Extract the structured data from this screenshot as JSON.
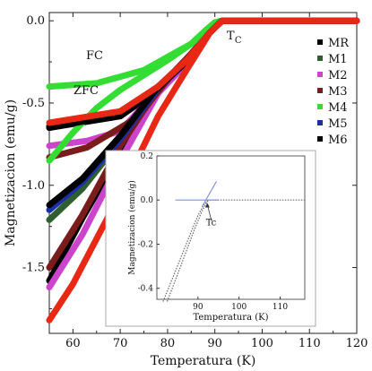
{
  "chart_data": [
    {
      "type": "line",
      "xlabel": "Temperatura (K)",
      "ylabel": "Magnetizacion (emu/g)",
      "xlim": [
        55,
        120
      ],
      "ylim": [
        -1.9,
        0.05
      ],
      "x_ticks": [
        "60",
        "70",
        "80",
        "90",
        "100",
        "110",
        "120"
      ],
      "y_ticks": [
        "0.0",
        "-0.5",
        "-1.0",
        "-1.5"
      ],
      "legend_position": "right",
      "annotations": {
        "fc": "FC",
        "zfc": "ZFC",
        "tc_main": "T",
        "tc_sub": "C"
      },
      "series": [
        {
          "name": "MR",
          "color": "#000000",
          "fc": [
            [
              55,
              -0.65
            ],
            [
              70,
              -0.58
            ],
            [
              78,
              -0.42
            ],
            [
              84,
              -0.25
            ],
            [
              89,
              -0.07
            ],
            [
              91.5,
              0
            ],
            [
              120,
              0
            ]
          ],
          "zfc": [
            [
              55,
              -1.58
            ],
            [
              62,
              -1.2
            ],
            [
              70,
              -0.8
            ],
            [
              78,
              -0.42
            ],
            [
              84,
              -0.25
            ],
            [
              89,
              -0.07
            ],
            [
              91.5,
              0
            ],
            [
              120,
              0
            ]
          ]
        },
        {
          "name": "M1",
          "color": "#2f5f2f",
          "fc": [
            [
              55,
              -0.64
            ],
            [
              70,
              -0.56
            ],
            [
              78,
              -0.4
            ],
            [
              84,
              -0.24
            ],
            [
              89,
              -0.07
            ],
            [
              91.5,
              0
            ],
            [
              120,
              0
            ]
          ],
          "zfc": [
            [
              55,
              -1.21
            ],
            [
              62,
              -1.02
            ],
            [
              70,
              -0.73
            ],
            [
              78,
              -0.41
            ],
            [
              84,
              -0.25
            ],
            [
              89,
              -0.07
            ],
            [
              91.5,
              0
            ],
            [
              120,
              0
            ]
          ]
        },
        {
          "name": "M2",
          "color": "#cc44cc",
          "fc": [
            [
              55,
              -0.76
            ],
            [
              63,
              -0.73
            ],
            [
              70,
              -0.67
            ],
            [
              78,
              -0.42
            ],
            [
              84,
              -0.25
            ],
            [
              89,
              -0.07
            ],
            [
              91.5,
              0
            ],
            [
              120,
              0
            ]
          ],
          "zfc": [
            [
              55,
              -1.62
            ],
            [
              62,
              -1.3
            ],
            [
              70,
              -0.85
            ],
            [
              78,
              -0.44
            ],
            [
              84,
              -0.26
            ],
            [
              89,
              -0.07
            ],
            [
              91.5,
              0
            ],
            [
              120,
              0
            ]
          ]
        },
        {
          "name": "M3",
          "color": "#7a1c1c",
          "fc": [
            [
              55,
              -0.83
            ],
            [
              63,
              -0.77
            ],
            [
              70,
              -0.65
            ],
            [
              74,
              -0.58
            ],
            [
              80,
              -0.35
            ],
            [
              85,
              -0.2
            ],
            [
              89,
              -0.07
            ],
            [
              91.5,
              0
            ],
            [
              120,
              0
            ]
          ],
          "zfc": [
            [
              55,
              -1.5
            ],
            [
              62,
              -1.18
            ],
            [
              70,
              -0.76
            ],
            [
              76,
              -0.5
            ],
            [
              80,
              -0.36
            ],
            [
              85,
              -0.2
            ],
            [
              89,
              -0.07
            ],
            [
              91.5,
              0
            ],
            [
              120,
              0
            ]
          ]
        },
        {
          "name": "M4",
          "color": "#33dd33",
          "fc": [
            [
              55,
              -0.4
            ],
            [
              65,
              -0.38
            ],
            [
              75,
              -0.3
            ],
            [
              80,
              -0.22
            ],
            [
              85,
              -0.14
            ],
            [
              88,
              -0.06
            ],
            [
              90,
              -0.01
            ],
            [
              91.5,
              0
            ],
            [
              120,
              0
            ]
          ],
          "zfc": [
            [
              55,
              -0.85
            ],
            [
              60,
              -0.68
            ],
            [
              65,
              -0.53
            ],
            [
              70,
              -0.42
            ],
            [
              75,
              -0.33
            ],
            [
              80,
              -0.24
            ],
            [
              85,
              -0.14
            ],
            [
              88,
              -0.06
            ],
            [
              90,
              -0.01
            ],
            [
              91.5,
              0
            ],
            [
              120,
              0
            ]
          ]
        },
        {
          "name": "M5",
          "color": "#1c2fa8",
          "fc": [
            [
              55,
              -0.64
            ],
            [
              70,
              -0.56
            ],
            [
              78,
              -0.4
            ],
            [
              84,
              -0.24
            ],
            [
              89,
              -0.07
            ],
            [
              91.5,
              0
            ],
            [
              120,
              0
            ]
          ],
          "zfc": [
            [
              55,
              -1.15
            ],
            [
              62,
              -0.98
            ],
            [
              70,
              -0.72
            ],
            [
              78,
              -0.41
            ],
            [
              84,
              -0.25
            ],
            [
              89,
              -0.07
            ],
            [
              91.5,
              0
            ],
            [
              120,
              0
            ]
          ]
        },
        {
          "name": "M6",
          "color": "#000000",
          "fc": [
            [
              55,
              -0.65
            ],
            [
              70,
              -0.57
            ],
            [
              78,
              -0.41
            ],
            [
              84,
              -0.24
            ],
            [
              89,
              -0.07
            ],
            [
              91.5,
              0
            ],
            [
              120,
              0
            ]
          ],
          "zfc": [
            [
              55,
              -1.12
            ],
            [
              62,
              -0.96
            ],
            [
              70,
              -0.7
            ],
            [
              78,
              -0.4
            ],
            [
              84,
              -0.25
            ],
            [
              89,
              -0.07
            ],
            [
              91.5,
              0
            ],
            [
              120,
              0
            ]
          ]
        },
        {
          "name": "",
          "color": "#e82814",
          "fc": [
            [
              55,
              -0.62
            ],
            [
              70,
              -0.55
            ],
            [
              78,
              -0.4
            ],
            [
              84,
              -0.24
            ],
            [
              89,
              -0.07
            ],
            [
              91.5,
              0
            ],
            [
              120,
              0
            ]
          ],
          "zfc": [
            [
              55,
              -1.82
            ],
            [
              60,
              -1.6
            ],
            [
              70,
              -1.05
            ],
            [
              78,
              -0.58
            ],
            [
              84,
              -0.3
            ],
            [
              89,
              -0.07
            ],
            [
              91.5,
              0
            ],
            [
              120,
              0
            ]
          ]
        }
      ]
    },
    {
      "type": "line",
      "xlabel": "Temperatura (K)",
      "ylabel": "Magnetizacion (emu/g)",
      "xlim": [
        80,
        116
      ],
      "ylim": [
        -0.45,
        0.2
      ],
      "x_ticks": [
        "90",
        "100",
        "110"
      ],
      "y_ticks": [
        "0.2",
        "0.0",
        "-0.2",
        "-0.4"
      ],
      "annotation": "Tc",
      "series": [
        {
          "name": "",
          "color": "#666666",
          "style": "dotted",
          "points": [
            [
              81.5,
              -0.46
            ],
            [
              85,
              -0.3
            ],
            [
              88,
              -0.16
            ],
            [
              90,
              -0.07
            ],
            [
              91.5,
              -0.02
            ],
            [
              92.5,
              0
            ],
            [
              116,
              0
            ]
          ]
        },
        {
          "name": "",
          "color": "#666666",
          "style": "dotted",
          "points": [
            [
              82.5,
              -0.46
            ],
            [
              86,
              -0.29
            ],
            [
              89,
              -0.14
            ],
            [
              91,
              -0.05
            ],
            [
              92.5,
              0
            ]
          ]
        },
        {
          "name": "",
          "color": "#7a8fe8",
          "style": "solid",
          "points": [
            [
              84.5,
              0
            ],
            [
              95,
              0
            ]
          ]
        },
        {
          "name": "",
          "color": "#7a8fe8",
          "style": "solid",
          "points": [
            [
              91,
              -0.03
            ],
            [
              94.5,
              0.085
            ]
          ]
        }
      ]
    }
  ]
}
